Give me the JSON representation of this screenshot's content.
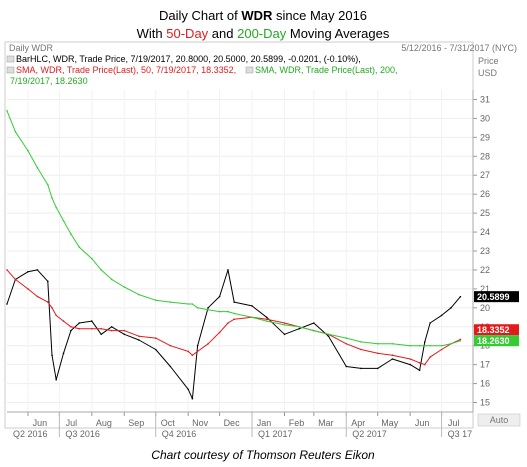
{
  "header": {
    "line1_prefix": "Daily Chart of ",
    "line1_ticker": "WDR",
    "line1_suffix": " since May 2016",
    "line2_prefix": "With ",
    "line2_fifty": "50-Day",
    "line2_mid": " and ",
    "line2_twohundred": "200-Day",
    "line2_suffix": " Moving Averages"
  },
  "panel": {
    "name": "Daily WDR",
    "date_range": "5/12/2016 - 7/31/2017 (NYC)",
    "price_label": "Price",
    "currency_label": "USD",
    "auto_label": "Auto"
  },
  "legend": {
    "barhlc": "BarHLC, WDR, Trade Price, 7/19/2017, 20.8000, 20.5000, 20.5899, -0.0201, (-0.10%),",
    "sma50": "SMA, WDR, Trade Price(Last),  50, 7/19/2017, 18.3352,",
    "sma200_line1": "SMA, WDR, Trade Price(Last),  200,",
    "sma200_line2": "7/19/2017, 18.2630"
  },
  "caption": "Chart courtesy of Thomson Reuters Eikon",
  "colors": {
    "price": "#000000",
    "sma50": "#e31a1c",
    "sma200": "#33cc33",
    "fifty_text": "#e31a1c",
    "twohundred_text": "#22aa22",
    "last_box": "#000000",
    "sma50_box": "#e31a1c",
    "sma200_box": "#33cc33"
  },
  "chart_data": {
    "type": "line",
    "title": "Daily Chart of WDR since May 2016",
    "subtitle": "With 50-Day and 200-Day Moving Averages",
    "x": [
      "2016-05-12",
      "2016-05-20",
      "2016-06-01",
      "2016-06-10",
      "2016-06-20",
      "2016-06-24",
      "2016-06-28",
      "2016-07-05",
      "2016-07-12",
      "2016-07-20",
      "2016-08-01",
      "2016-08-10",
      "2016-08-20",
      "2016-09-01",
      "2016-09-15",
      "2016-10-01",
      "2016-10-15",
      "2016-11-01",
      "2016-11-05",
      "2016-11-10",
      "2016-11-20",
      "2016-12-01",
      "2016-12-09",
      "2016-12-15",
      "2017-01-01",
      "2017-01-15",
      "2017-02-01",
      "2017-02-15",
      "2017-03-01",
      "2017-03-15",
      "2017-04-01",
      "2017-04-15",
      "2017-05-01",
      "2017-05-15",
      "2017-06-01",
      "2017-06-10",
      "2017-06-15",
      "2017-06-20",
      "2017-07-01",
      "2017-07-10",
      "2017-07-19"
    ],
    "series": [
      {
        "name": "BarHLC, WDR",
        "values": [
          20.2,
          21.5,
          21.9,
          22.0,
          21.4,
          17.5,
          16.2,
          17.6,
          18.8,
          19.2,
          19.3,
          18.6,
          19.0,
          18.6,
          18.3,
          17.8,
          16.9,
          15.7,
          15.2,
          18.0,
          20.0,
          20.6,
          22.0,
          20.3,
          20.1,
          19.5,
          18.6,
          18.9,
          19.2,
          18.5,
          16.9,
          16.8,
          16.8,
          17.3,
          17.0,
          16.7,
          18.2,
          19.2,
          19.6,
          20.0,
          20.5899
        ]
      },
      {
        "name": "SMA 50",
        "values": [
          22.0,
          21.5,
          21.0,
          20.6,
          20.3,
          20.0,
          19.6,
          19.3,
          19.0,
          18.9,
          18.9,
          18.9,
          18.8,
          18.8,
          18.5,
          18.4,
          18.0,
          17.7,
          17.5,
          17.7,
          18.1,
          18.7,
          19.2,
          19.4,
          19.5,
          19.4,
          19.2,
          19.0,
          18.8,
          18.6,
          18.1,
          17.8,
          17.6,
          17.5,
          17.3,
          17.1,
          17.0,
          17.4,
          17.8,
          18.1,
          18.3352
        ]
      },
      {
        "name": "SMA 200",
        "values": [
          30.4,
          29.3,
          28.3,
          27.4,
          26.5,
          25.8,
          25.3,
          24.6,
          23.9,
          23.2,
          22.6,
          22.0,
          21.5,
          21.1,
          20.7,
          20.4,
          20.3,
          20.2,
          20.2,
          20.0,
          19.9,
          19.8,
          19.8,
          19.7,
          19.5,
          19.3,
          19.1,
          19.0,
          18.8,
          18.6,
          18.4,
          18.2,
          18.1,
          18.1,
          18.0,
          18.0,
          18.0,
          18.0,
          18.0,
          18.1,
          18.263
        ]
      }
    ],
    "last_values": [
      "20.5899",
      "18.3352",
      "18.2630"
    ],
    "ylim": [
      14.5,
      31.5
    ],
    "yticks": [
      "15",
      "16",
      "17",
      "18",
      "19",
      "20",
      "21",
      "22",
      "23",
      "24",
      "25",
      "26",
      "27",
      "28",
      "29",
      "30",
      "31"
    ],
    "xticks": [
      "Jun",
      "Jul",
      "Aug",
      "Sep",
      "Oct",
      "Nov",
      "Dec",
      "Jan",
      "Feb",
      "Mar",
      "Apr",
      "May",
      "Jun",
      "Jul"
    ],
    "quarters": [
      "Q2 2016",
      "Q3 2016",
      "Q4 2016",
      "Q1 2017",
      "Q2 2017",
      "Q3 17"
    ],
    "xlim": [
      "2016-05-12",
      "2017-07-31"
    ],
    "grid": true
  }
}
